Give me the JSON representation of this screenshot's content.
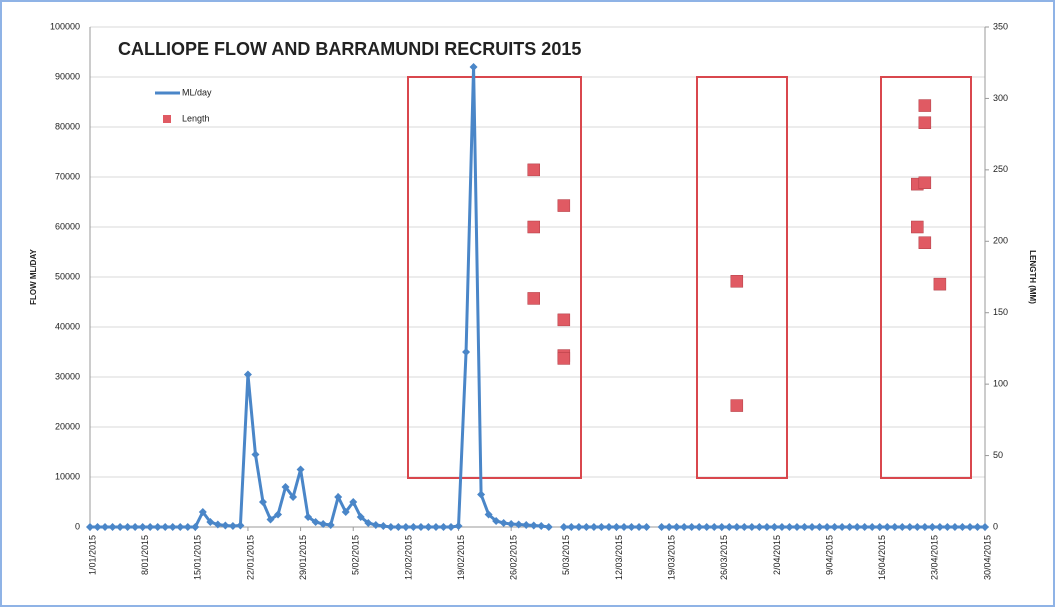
{
  "chart_data": {
    "type": "line",
    "title": "CALLIOPE FLOW AND BARRAMUNDI RECRUITS 2015",
    "y_label": "FLOW ML/DAY",
    "y2_label": "LENGTH (MM)",
    "xlim": [
      1,
      120
    ],
    "xticks": [
      {
        "value": 1,
        "label": "1/01/2015"
      },
      {
        "value": 8,
        "label": "8/01/2015"
      },
      {
        "value": 15,
        "label": "15/01/2015"
      },
      {
        "value": 22,
        "label": "22/01/2015"
      },
      {
        "value": 29,
        "label": "29/01/2015"
      },
      {
        "value": 36,
        "label": "5/02/2015"
      },
      {
        "value": 43,
        "label": "12/02/2015"
      },
      {
        "value": 50,
        "label": "19/02/2015"
      },
      {
        "value": 57,
        "label": "26/02/2015"
      },
      {
        "value": 64,
        "label": "5/03/2015"
      },
      {
        "value": 71,
        "label": "12/03/2015"
      },
      {
        "value": 78,
        "label": "19/03/2015"
      },
      {
        "value": 85,
        "label": "26/03/2015"
      },
      {
        "value": 92,
        "label": "2/04/2015"
      },
      {
        "value": 99,
        "label": "9/04/2015"
      },
      {
        "value": 106,
        "label": "16/04/2015"
      },
      {
        "value": 113,
        "label": "23/04/2015"
      },
      {
        "value": 120,
        "label": "30/04/2015"
      }
    ],
    "ylim": [
      0,
      100000
    ],
    "yticks": [
      0,
      10000,
      20000,
      30000,
      40000,
      50000,
      60000,
      70000,
      80000,
      90000,
      100000
    ],
    "y2lim": [
      0,
      350
    ],
    "y2ticks": [
      0,
      50,
      100,
      150,
      200,
      250,
      300,
      350
    ],
    "grid": true,
    "series": [
      {
        "name": "ML/day",
        "color": "#4a86c8",
        "type": "line",
        "x": [
          1,
          2,
          3,
          4,
          5,
          6,
          7,
          8,
          9,
          10,
          11,
          12,
          13,
          14,
          15,
          16,
          17,
          18,
          19,
          20,
          21,
          22,
          23,
          24,
          25,
          26,
          27,
          28,
          29,
          30,
          31,
          32,
          33,
          34,
          35,
          36,
          37,
          38,
          39,
          40,
          41,
          42,
          43,
          44,
          45,
          46,
          47,
          48,
          49,
          50,
          51,
          52,
          53,
          54,
          55,
          56,
          57,
          58,
          59,
          60,
          61,
          62,
          63,
          64,
          65,
          66,
          67,
          68,
          69,
          70,
          71,
          72,
          73,
          74,
          75,
          76,
          77,
          78,
          79,
          80,
          81,
          82,
          83,
          84,
          85,
          86,
          87,
          88,
          89,
          90,
          91,
          92,
          93,
          94,
          95,
          96,
          97,
          98,
          99,
          100,
          101,
          102,
          103,
          104,
          105,
          106,
          107,
          108,
          109,
          110,
          111,
          112,
          113,
          114,
          115,
          116,
          117,
          118,
          119,
          120
        ],
        "values": [
          0,
          0,
          0,
          0,
          0,
          0,
          0,
          0,
          0,
          0,
          0,
          0,
          0,
          0,
          0,
          3000,
          1000,
          500,
          300,
          200,
          300,
          30500,
          14500,
          5000,
          1500,
          2500,
          8000,
          6000,
          11500,
          2000,
          1000,
          600,
          400,
          6000,
          3000,
          5000,
          2000,
          800,
          400,
          200,
          0,
          0,
          0,
          0,
          0,
          0,
          0,
          0,
          0,
          200,
          35000,
          92000,
          6500,
          2500,
          1200,
          800,
          600,
          500,
          400,
          300,
          200,
          0,
          null,
          0,
          0,
          0,
          0,
          0,
          0,
          0,
          0,
          0,
          0,
          0,
          0,
          null,
          0,
          0,
          0,
          0,
          0,
          0,
          0,
          0,
          0,
          0,
          0,
          0,
          0,
          0,
          0,
          0,
          0,
          0,
          0,
          0,
          0,
          0,
          0,
          0,
          0,
          0,
          0,
          0,
          0,
          0,
          0,
          0,
          0,
          0,
          0,
          0,
          0,
          0,
          0,
          0,
          0,
          0,
          0,
          0
        ]
      },
      {
        "name": "Length",
        "color": "#e05a63",
        "type": "scatter",
        "axis": "y2",
        "x": [
          60,
          60,
          60,
          64,
          64,
          64,
          64,
          87,
          87,
          111,
          111,
          112,
          112,
          112,
          112,
          114
        ],
        "values": [
          250,
          210,
          160,
          225,
          145,
          120,
          118,
          172,
          85,
          240,
          210,
          295,
          283,
          241,
          199,
          170
        ]
      }
    ]
  }
}
